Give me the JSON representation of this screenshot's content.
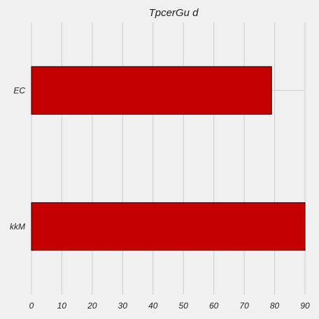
{
  "chart_data": {
    "type": "bar",
    "orientation": "horizontal",
    "title": "TpcerGu d",
    "xlabel": "",
    "ylabel": "",
    "categories": [
      "EC",
      "kkM"
    ],
    "values": [
      79,
      90
    ],
    "xlim": [
      0,
      90
    ],
    "xticks": [
      "0",
      "10",
      "20",
      "30",
      "40",
      "50",
      "60",
      "70",
      "80",
      "90"
    ],
    "grid": true,
    "bar_color": "#c40000",
    "background_color": "#f0f0f0"
  }
}
